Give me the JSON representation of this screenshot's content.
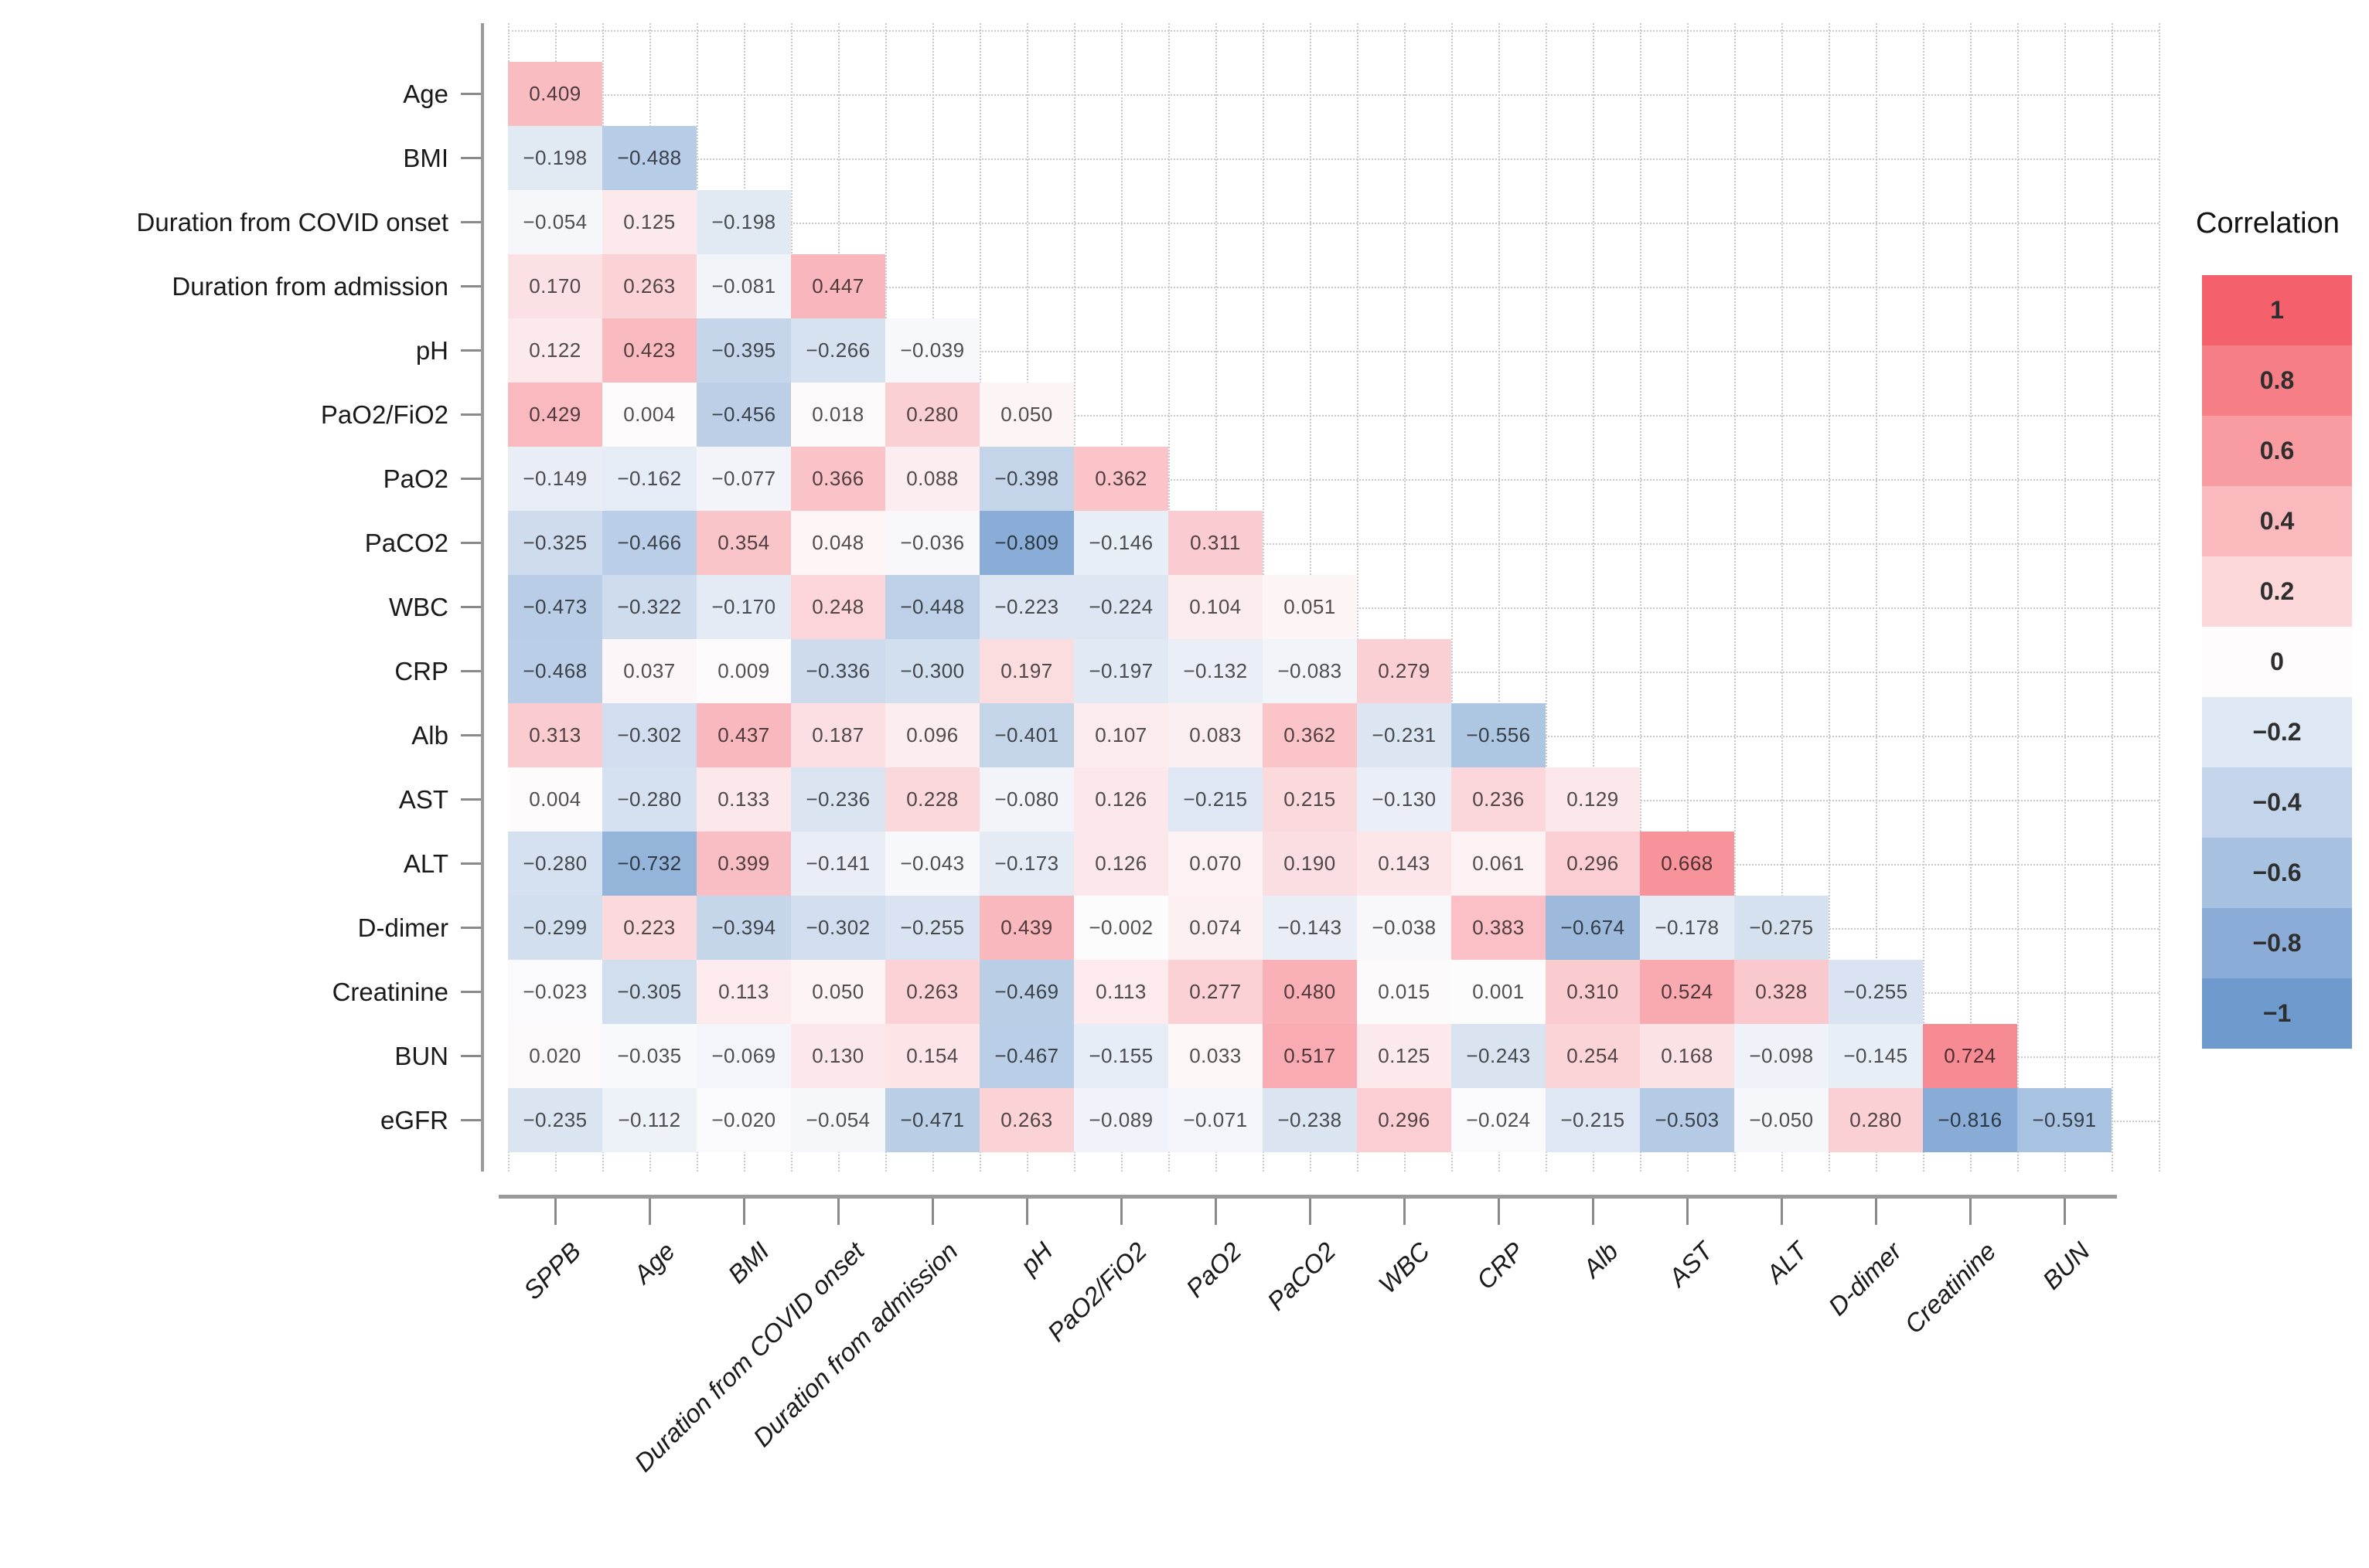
{
  "chart_data": {
    "type": "heatmap",
    "title": "",
    "legend_title": "Correlation",
    "rows": [
      "Age",
      "BMI",
      "Duration from COVID onset",
      "Duration from admission",
      "pH",
      "PaO2/FiO2",
      "PaO2",
      "PaCO2",
      "WBC",
      "CRP",
      "Alb",
      "AST",
      "ALT",
      "D-dimer",
      "Creatinine",
      "BUN",
      "eGFR"
    ],
    "columns": [
      "SPPB",
      "Age",
      "BMI",
      "Duration from COVID onset",
      "Duration from admission",
      "pH",
      "PaO2/FiO2",
      "PaO2",
      "PaCO2",
      "WBC",
      "CRP",
      "Alb",
      "AST",
      "ALT",
      "D-dimer",
      "Creatinine",
      "BUN"
    ],
    "values": [
      [
        0.409
      ],
      [
        -0.198,
        -0.488
      ],
      [
        -0.054,
        0.125,
        -0.198
      ],
      [
        0.17,
        0.263,
        -0.081,
        0.447
      ],
      [
        0.122,
        0.423,
        -0.395,
        -0.266,
        -0.039
      ],
      [
        0.429,
        0.004,
        -0.456,
        0.018,
        0.28,
        0.05
      ],
      [
        -0.149,
        -0.162,
        -0.077,
        0.366,
        0.088,
        -0.398,
        0.362
      ],
      [
        -0.325,
        -0.466,
        0.354,
        0.048,
        -0.036,
        -0.809,
        -0.146,
        0.311
      ],
      [
        -0.473,
        -0.322,
        -0.17,
        0.248,
        -0.448,
        -0.223,
        -0.224,
        0.104,
        0.051
      ],
      [
        -0.468,
        0.037,
        0.009,
        -0.336,
        -0.3,
        0.197,
        -0.197,
        -0.132,
        -0.083,
        0.279
      ],
      [
        0.313,
        -0.302,
        0.437,
        0.187,
        0.096,
        -0.401,
        0.107,
        0.083,
        0.362,
        -0.231,
        -0.556
      ],
      [
        0.004,
        -0.28,
        0.133,
        -0.236,
        0.228,
        -0.08,
        0.126,
        -0.215,
        0.215,
        -0.13,
        0.236,
        0.129
      ],
      [
        -0.28,
        -0.732,
        0.399,
        -0.141,
        -0.043,
        -0.173,
        0.126,
        0.07,
        0.19,
        0.143,
        0.061,
        0.296,
        0.668
      ],
      [
        -0.299,
        0.223,
        -0.394,
        -0.302,
        -0.255,
        0.439,
        -0.002,
        0.074,
        -0.143,
        -0.038,
        0.383,
        -0.674,
        -0.178,
        -0.275
      ],
      [
        -0.023,
        -0.305,
        0.113,
        0.05,
        0.263,
        -0.469,
        0.113,
        0.277,
        0.48,
        0.015,
        0.001,
        0.31,
        0.524,
        0.328,
        -0.255
      ],
      [
        0.02,
        -0.035,
        -0.069,
        0.13,
        0.154,
        -0.467,
        -0.155,
        0.033,
        0.517,
        0.125,
        -0.243,
        0.254,
        0.168,
        -0.098,
        -0.145,
        0.724
      ],
      [
        -0.235,
        -0.112,
        -0.02,
        -0.054,
        -0.471,
        0.263,
        -0.089,
        -0.071,
        -0.238,
        0.296,
        -0.024,
        -0.215,
        -0.503,
        -0.05,
        0.28,
        -0.816,
        -0.591
      ]
    ],
    "value_range": [
      -1,
      1
    ],
    "grid": "dotted",
    "legend_position": "right",
    "legend": {
      "ticks": [
        "1",
        "0.8",
        "0.6",
        "0.4",
        "0.2",
        "0",
        "−0.2",
        "−0.4",
        "−0.6",
        "−0.8",
        "−1"
      ],
      "colors": [
        "#F4606B",
        "#F67E86",
        "#F89CA2",
        "#FABABD",
        "#FCD8DA",
        "#FEFCFD",
        "#DEE8F4",
        "#C3D4EB",
        "#A7C1E1",
        "#8AACD7",
        "#6E9ACD"
      ]
    },
    "colors": {
      "positive": "#F4606B",
      "zero": "#FDFCFD",
      "negative": "#6E9ACD"
    }
  }
}
